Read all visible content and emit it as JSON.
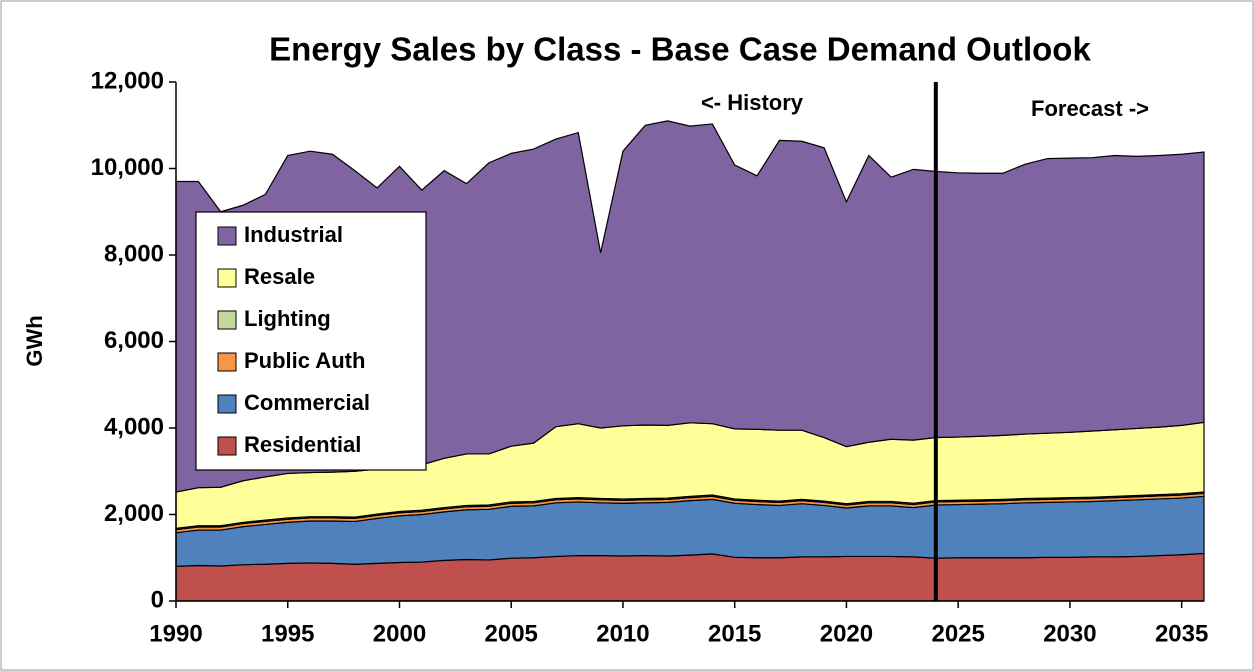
{
  "chart_data": {
    "type": "stacked_area",
    "title": "Energy Sales by Class - Base Case Demand Outlook",
    "y_label": "GWh",
    "annotations": [
      "<- History",
      "Forecast ->"
    ],
    "divider_x": 2024,
    "x": [
      1990,
      1991,
      1992,
      1993,
      1994,
      1995,
      1996,
      1997,
      1998,
      1999,
      2000,
      2001,
      2002,
      2003,
      2004,
      2005,
      2006,
      2007,
      2008,
      2009,
      2010,
      2011,
      2012,
      2013,
      2014,
      2015,
      2016,
      2017,
      2018,
      2019,
      2020,
      2021,
      2022,
      2023,
      2024,
      2025,
      2026,
      2027,
      2028,
      2029,
      2030,
      2031,
      2032,
      2033,
      2034,
      2035,
      2036
    ],
    "xlim": [
      1990,
      2036
    ],
    "xticks": [
      1990,
      1995,
      2000,
      2005,
      2010,
      2015,
      2020,
      2025,
      2030,
      2035
    ],
    "ylim": [
      0,
      12000
    ],
    "yticks": [
      {
        "value": 0,
        "label": "0"
      },
      {
        "value": 2000,
        "label": "2,000"
      },
      {
        "value": 4000,
        "label": "4,000"
      },
      {
        "value": 6000,
        "label": "6,000"
      },
      {
        "value": 8000,
        "label": "8,000"
      },
      {
        "value": 10000,
        "label": "10,000"
      },
      {
        "value": 12000,
        "label": "12,000"
      }
    ],
    "series": [
      {
        "name": "Residential",
        "color": "#c0504d",
        "values": [
          800,
          820,
          810,
          840,
          850,
          870,
          880,
          870,
          850,
          870,
          890,
          900,
          940,
          960,
          950,
          990,
          1000,
          1030,
          1050,
          1050,
          1040,
          1050,
          1040,
          1060,
          1090,
          1010,
          1000,
          1000,
          1020,
          1020,
          1030,
          1030,
          1030,
          1020,
          990,
          1000,
          1000,
          1000,
          1000,
          1010,
          1010,
          1020,
          1020,
          1030,
          1050,
          1070,
          1100
        ]
      },
      {
        "name": "Commercial",
        "color": "#4f81bd",
        "values": [
          780,
          820,
          830,
          880,
          920,
          950,
          970,
          980,
          990,
          1040,
          1080,
          1100,
          1120,
          1150,
          1170,
          1200,
          1200,
          1240,
          1240,
          1220,
          1220,
          1220,
          1240,
          1260,
          1260,
          1250,
          1230,
          1210,
          1230,
          1190,
          1120,
          1170,
          1170,
          1140,
          1230,
          1230,
          1240,
          1250,
          1270,
          1270,
          1280,
          1280,
          1300,
          1310,
          1310,
          1310,
          1320
        ]
      },
      {
        "name": "Public Auth",
        "color": "#f79646",
        "values": [
          70,
          70,
          70,
          70,
          70,
          70,
          70,
          70,
          70,
          70,
          70,
          70,
          70,
          70,
          70,
          70,
          70,
          70,
          70,
          70,
          70,
          70,
          70,
          70,
          70,
          70,
          70,
          70,
          70,
          70,
          70,
          70,
          70,
          70,
          70,
          70,
          70,
          70,
          70,
          70,
          70,
          70,
          70,
          70,
          70,
          70,
          70
        ]
      },
      {
        "name": "Lighting",
        "color": "#c3d69b",
        "values": [
          30,
          30,
          30,
          30,
          30,
          30,
          30,
          30,
          30,
          30,
          30,
          30,
          30,
          30,
          30,
          30,
          30,
          30,
          30,
          30,
          30,
          30,
          30,
          30,
          30,
          30,
          30,
          30,
          30,
          30,
          30,
          30,
          30,
          30,
          30,
          30,
          30,
          30,
          30,
          30,
          30,
          30,
          30,
          30,
          30,
          30,
          30
        ]
      },
      {
        "name": "Resale",
        "color": "#ffff99",
        "values": [
          840,
          880,
          890,
          960,
          1000,
          1030,
          1020,
          1030,
          1060,
          1040,
          1030,
          1050,
          1140,
          1190,
          1180,
          1290,
          1350,
          1660,
          1710,
          1630,
          1690,
          1700,
          1680,
          1700,
          1650,
          1620,
          1640,
          1640,
          1600,
          1470,
          1320,
          1370,
          1440,
          1460,
          1460,
          1460,
          1470,
          1480,
          1490,
          1500,
          1510,
          1530,
          1540,
          1550,
          1560,
          1580,
          1610
        ]
      },
      {
        "name": "Industrial",
        "color": "#8064a2",
        "values": [
          7180,
          7080,
          6370,
          6370,
          6530,
          7350,
          7430,
          7350,
          6950,
          6500,
          6950,
          6350,
          6650,
          6250,
          6730,
          6770,
          6800,
          6650,
          6730,
          4050,
          6350,
          6930,
          7040,
          6860,
          6930,
          6100,
          5860,
          6700,
          6680,
          6700,
          5660,
          6630,
          6060,
          6260,
          6150,
          6110,
          6080,
          6060,
          6240,
          6350,
          6340,
          6320,
          6340,
          6290,
          6280,
          6270,
          6250
        ]
      }
    ]
  }
}
